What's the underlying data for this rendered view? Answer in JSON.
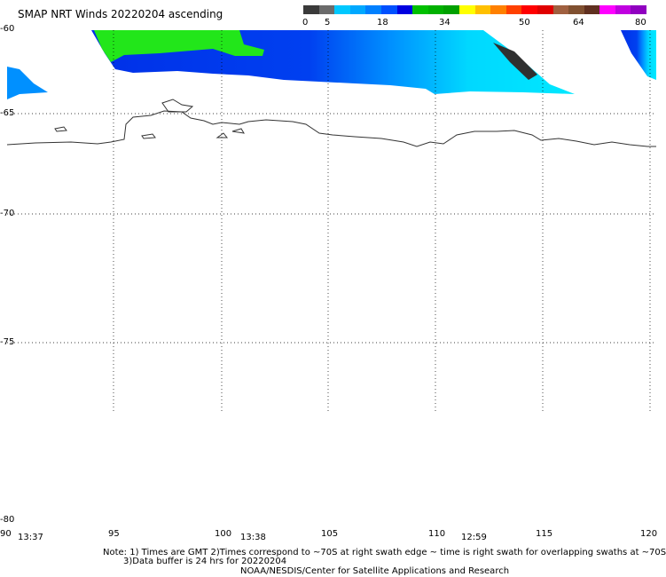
{
  "title": "SMAP NRT Winds 20220204 ascending",
  "colorbar": {
    "labels": [
      "0",
      "5",
      "18",
      "34",
      "50",
      "64",
      "80"
    ],
    "colors": [
      "#3a3a3a",
      "#6b6b6b",
      "#00c8ff",
      "#00a8ff",
      "#0080ff",
      "#0050ff",
      "#0000e0",
      "#00c000",
      "#00b000",
      "#00a000",
      "#ffff00",
      "#ffc000",
      "#ff8000",
      "#ff4000",
      "#ff0000",
      "#e00000",
      "#a06040",
      "#805030",
      "#603020",
      "#ff00ff",
      "#c000e0",
      "#9000c0"
    ]
  },
  "lat_labels": [
    "-60",
    "-65",
    "-70",
    "-75",
    "-80"
  ],
  "lon_labels": [
    "90",
    "95",
    "100",
    "105",
    "110",
    "115",
    "120"
  ],
  "swath_times": [
    "13:37",
    "13:38",
    "12:59"
  ],
  "notes": [
    "Note: 1) Times are GMT 2)Times correspond to ~70S at right swath edge ~ time is right swath for overlapping swaths at ~70S",
    "3)Data buffer is 24 hrs for 20220204",
    "NOAA/NESDIS/Center for Satellite Applications and Research"
  ],
  "colors": {
    "cyan": "#00e8ff",
    "blue": "#0038f0",
    "green": "#22e61a",
    "dark": "#303030"
  }
}
